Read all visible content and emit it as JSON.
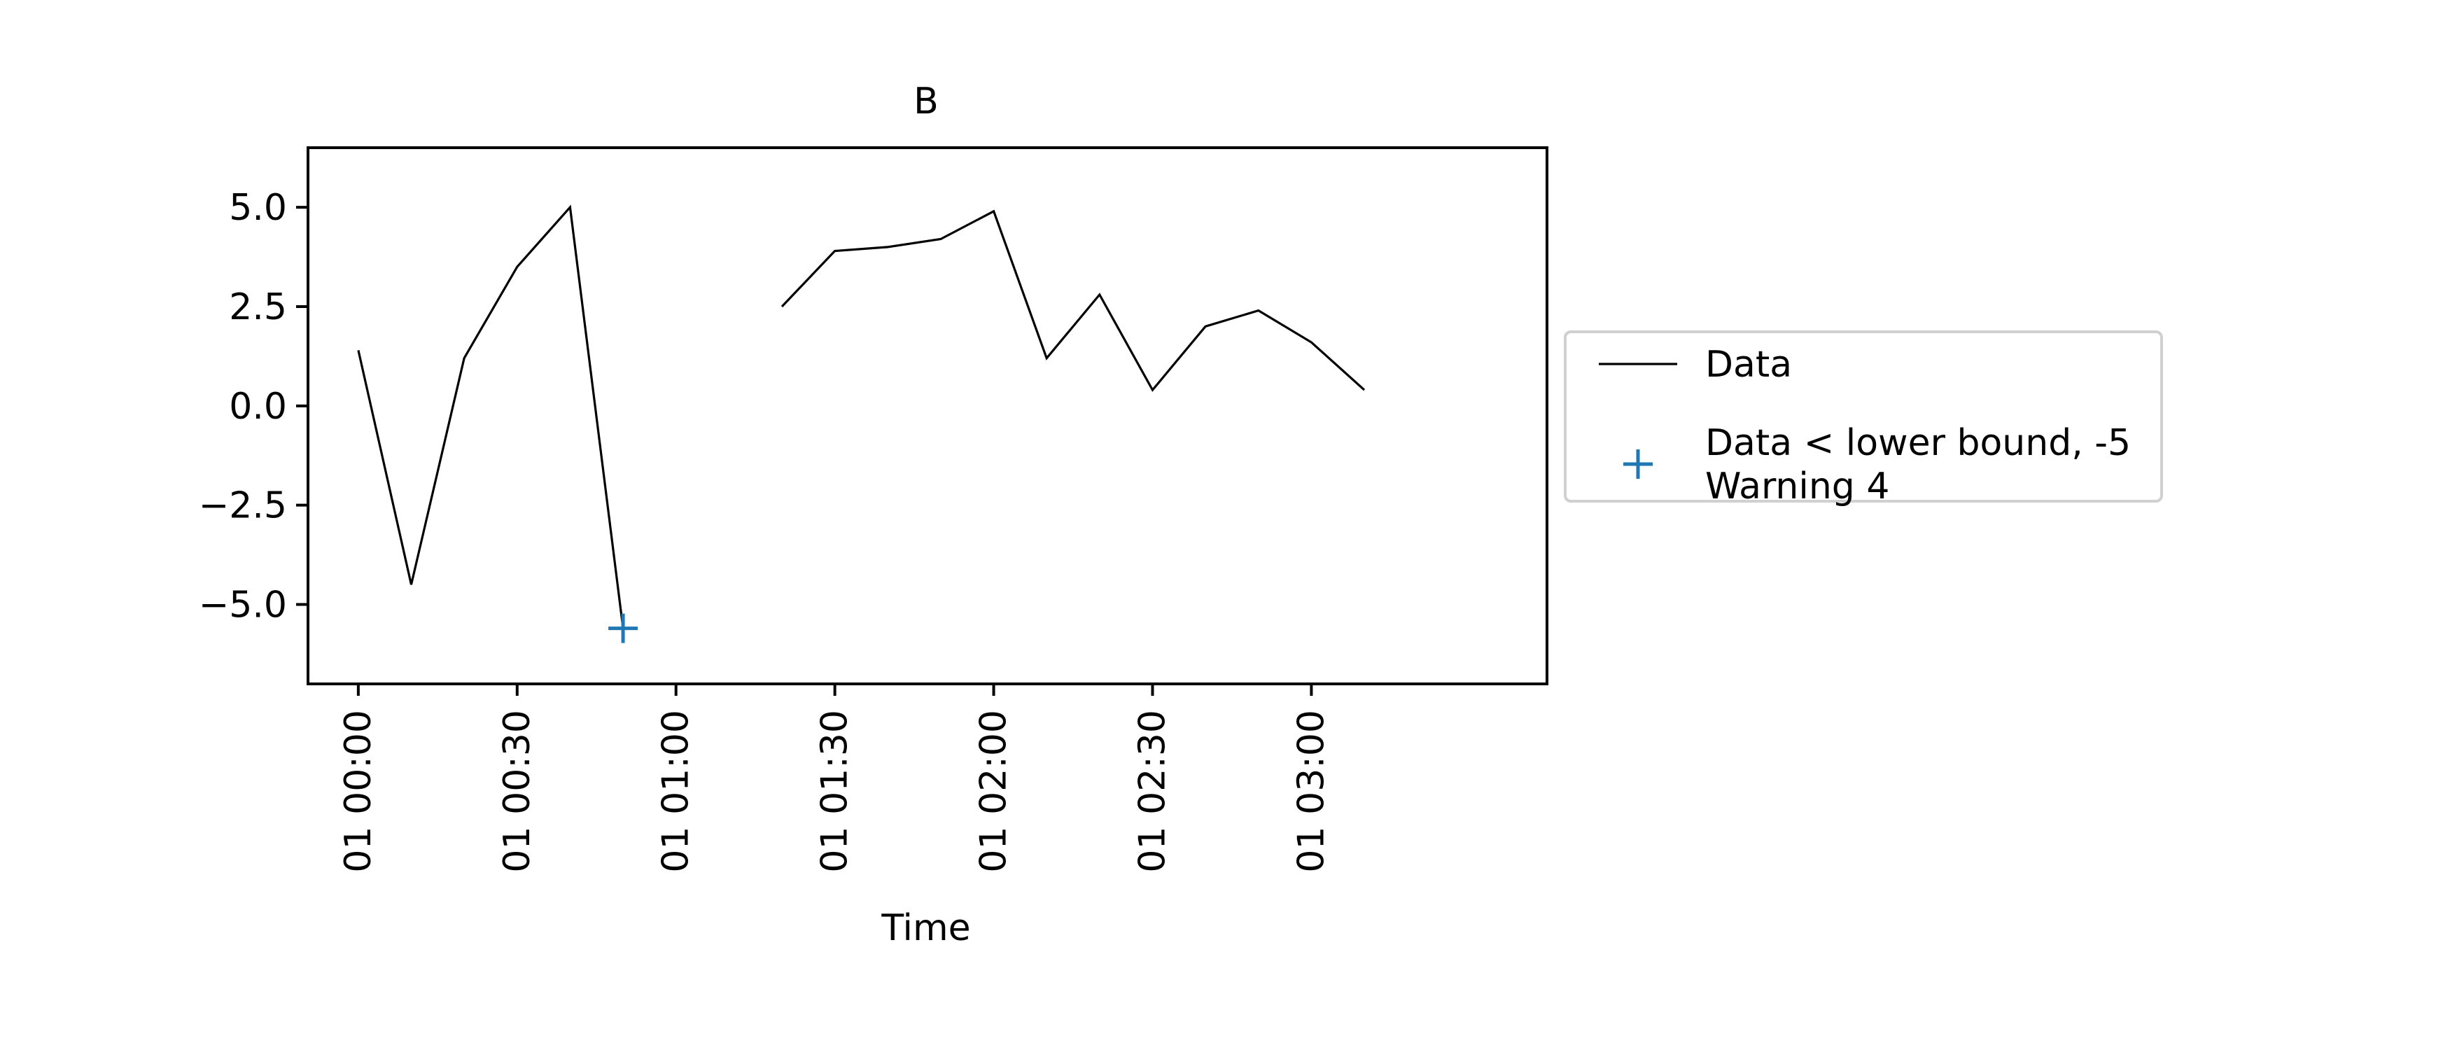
{
  "chart_data": {
    "type": "line",
    "title": "B",
    "xlabel": "Time",
    "ylabel": "",
    "xlim": [
      "01 00:00 - 9.5min",
      "01 03:18 + 6.5min"
    ],
    "x_range_minutes": [
      -9.5,
      224.5
    ],
    "ylim": [
      -7.0,
      6.5
    ],
    "x_ticks": [
      {
        "minutes": 0,
        "label": "01 00:00"
      },
      {
        "minutes": 30,
        "label": "01 00:30"
      },
      {
        "minutes": 60,
        "label": "01 01:00"
      },
      {
        "minutes": 90,
        "label": "01 01:30"
      },
      {
        "minutes": 120,
        "label": "01 02:00"
      },
      {
        "minutes": 150,
        "label": "01 02:30"
      },
      {
        "minutes": 180,
        "label": "01 03:00"
      }
    ],
    "y_ticks": [
      {
        "value": 5.0,
        "label": "5.0"
      },
      {
        "value": 2.5,
        "label": "2.5"
      },
      {
        "value": 0.0,
        "label": "0.0"
      },
      {
        "value": -2.5,
        "label": "−2.5"
      },
      {
        "value": -5.0,
        "label": "−5.0"
      }
    ],
    "grid": false,
    "legend_position": "outside-right",
    "series": [
      {
        "name": "Data",
        "color": "#000000",
        "marker": "none",
        "segments": [
          [
            {
              "x": "01 00:00",
              "minutes": 0,
              "y": 1.4
            },
            {
              "x": "01 00:10",
              "minutes": 10,
              "y": -4.5
            },
            {
              "x": "01 00:20",
              "minutes": 20,
              "y": 1.2
            },
            {
              "x": "01 00:30",
              "minutes": 30,
              "y": 3.5
            },
            {
              "x": "01 00:40",
              "minutes": 40,
              "y": 5.0
            },
            {
              "x": "01 00:50",
              "minutes": 50,
              "y": -5.6
            }
          ],
          [
            {
              "x": "01 01:20",
              "minutes": 80,
              "y": 2.5
            },
            {
              "x": "01 01:30",
              "minutes": 90,
              "y": 3.9
            },
            {
              "x": "01 01:40",
              "minutes": 100,
              "y": 4.0
            },
            {
              "x": "01 01:50",
              "minutes": 110,
              "y": 4.2
            },
            {
              "x": "01 02:00",
              "minutes": 120,
              "y": 4.9
            },
            {
              "x": "01 02:10",
              "minutes": 130,
              "y": 1.2
            },
            {
              "x": "01 02:20",
              "minutes": 140,
              "y": 2.8
            },
            {
              "x": "01 02:30",
              "minutes": 150,
              "y": 0.4
            },
            {
              "x": "01 02:40",
              "minutes": 160,
              "y": 2.0
            },
            {
              "x": "01 02:50",
              "minutes": 170,
              "y": 2.4
            },
            {
              "x": "01 03:00",
              "minutes": 180,
              "y": 1.6
            },
            {
              "x": "01 03:10",
              "minutes": 190,
              "y": 0.4
            }
          ]
        ]
      },
      {
        "name": "Data < lower bound, -5\nWarning 4",
        "color": "#1f77b4",
        "marker": "plus",
        "points": [
          {
            "x": "01 00:50",
            "minutes": 50,
            "y": -5.6
          }
        ]
      }
    ],
    "legend": [
      {
        "label_lines": [
          "Data"
        ],
        "symbol": "line",
        "color": "#000000"
      },
      {
        "label_lines": [
          "Data < lower bound, -5",
          "Warning 4"
        ],
        "symbol": "plus",
        "color": "#1f77b4"
      }
    ]
  }
}
